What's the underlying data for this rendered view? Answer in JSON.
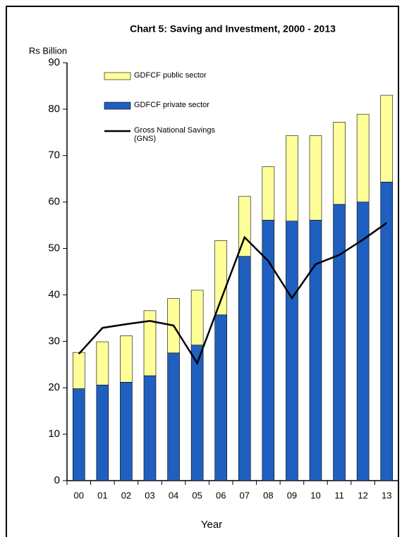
{
  "chart_data": {
    "type": "stacked-bar-line",
    "title": "Chart 5: Saving and Investment, 2000 - 2013",
    "y_label": "Rs Billion",
    "x_label": "Year",
    "categories": [
      "00",
      "01",
      "02",
      "03",
      "04",
      "05",
      "06",
      "07",
      "08",
      "09",
      "10",
      "11",
      "12",
      "13"
    ],
    "series": [
      {
        "name": "GDFCF private sector",
        "color": "#1f5fbf",
        "type": "bar",
        "values": [
          19.8,
          20.6,
          21.2,
          22.6,
          27.5,
          29.2,
          35.7,
          48.3,
          56.1,
          55.9,
          56.1,
          59.5,
          60.0,
          64.3
        ]
      },
      {
        "name": "GDFCF public sector",
        "color": "#ffff99",
        "type": "bar",
        "values": [
          7.8,
          9.3,
          10.0,
          14.0,
          11.7,
          11.8,
          16.0,
          12.9,
          11.5,
          18.4,
          18.2,
          17.7,
          18.9,
          18.7
        ]
      },
      {
        "name": "Gross National Savings (GNS)",
        "color": "#000000",
        "type": "line",
        "values": [
          27.3,
          32.9,
          33.7,
          34.4,
          33.4,
          25.3,
          38.9,
          52.4,
          47.3,
          39.3,
          46.6,
          48.6,
          51.9,
          55.5
        ]
      }
    ],
    "ylim": [
      0,
      90
    ],
    "yticks": [
      0,
      10,
      20,
      30,
      40,
      50,
      60,
      70,
      80,
      90
    ],
    "grid": false
  }
}
